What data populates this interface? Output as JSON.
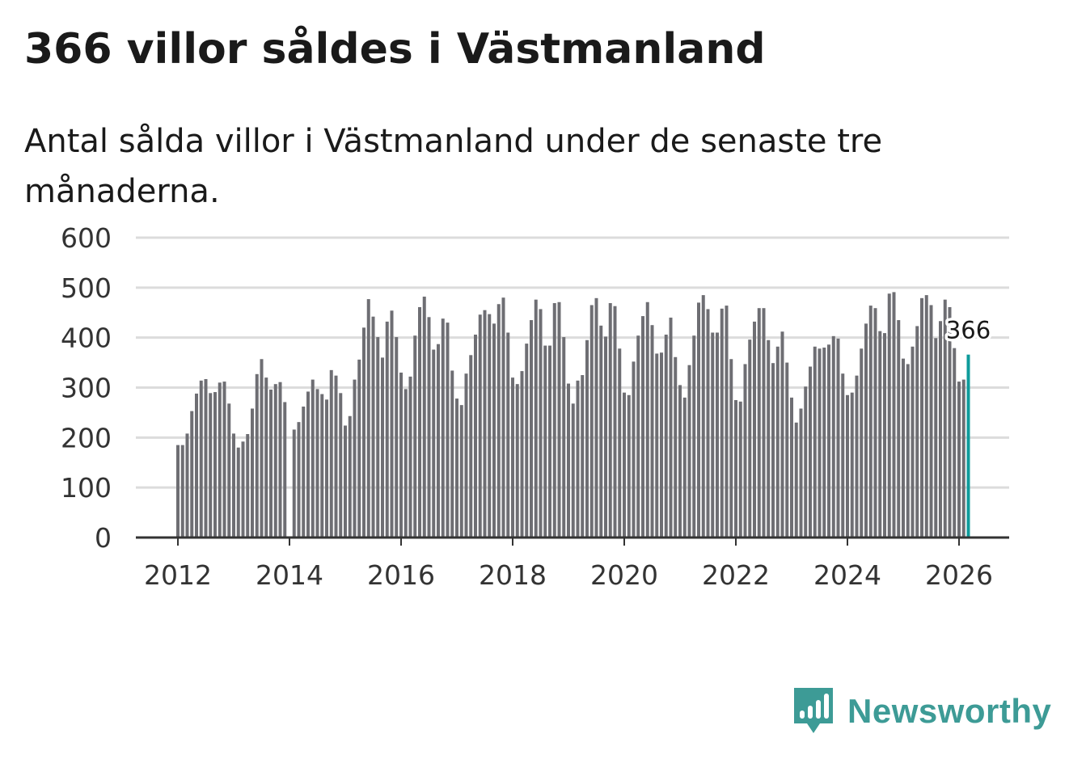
{
  "header": {
    "title": "366 villor såldes i Västmanland",
    "subtitle": "Antal sålda villor i Västmanland under de senaste tre månaderna."
  },
  "brand": {
    "name": "Newsworthy",
    "icon": "bar-chart-speech-bubble-icon",
    "color": "#3d9b96"
  },
  "colors": {
    "bar": "#6e6e73",
    "highlight": "#0e9b9b",
    "grid": "#dcdcdc",
    "axis": "#333333"
  },
  "chart_data": {
    "type": "bar",
    "title": "366 villor såldes i Västmanland",
    "subtitle": "Antal sålda villor i Västmanland under de senaste tre månaderna.",
    "xlabel": "",
    "ylabel": "",
    "ylim": [
      0,
      600
    ],
    "yticks": [
      "0",
      "100",
      "200",
      "300",
      "400",
      "500",
      "600"
    ],
    "xticks": [
      "2012",
      "2014",
      "2016",
      "2018",
      "2020",
      "2022",
      "2024",
      "2026"
    ],
    "grid": true,
    "legend": "none",
    "start": "2012-01",
    "end": "2026-03",
    "highlight_label": "366",
    "values": [
      185,
      185,
      208,
      253,
      288,
      314,
      317,
      289,
      291,
      310,
      312,
      268,
      208,
      180,
      192,
      207,
      258,
      327,
      357,
      320,
      296,
      307,
      311,
      271,
      null,
      216,
      231,
      262,
      292,
      316,
      297,
      287,
      276,
      335,
      324,
      289,
      224,
      243,
      316,
      356,
      420,
      477,
      442,
      401,
      360,
      432,
      454,
      401,
      330,
      297,
      322,
      404,
      461,
      482,
      441,
      376,
      387,
      438,
      430,
      334,
      278,
      265,
      328,
      365,
      406,
      446,
      455,
      447,
      428,
      467,
      480,
      410,
      320,
      307,
      333,
      388,
      435,
      476,
      457,
      384,
      384,
      469,
      471,
      401,
      308,
      268,
      314,
      325,
      395,
      465,
      479,
      424,
      402,
      469,
      463,
      378,
      290,
      285,
      352,
      404,
      443,
      471,
      425,
      368,
      370,
      406,
      440,
      361,
      305,
      280,
      345,
      404,
      470,
      485,
      457,
      410,
      410,
      458,
      464,
      357,
      275,
      272,
      347,
      396,
      432,
      459,
      459,
      395,
      349,
      382,
      412,
      350,
      280,
      230,
      258,
      302,
      342,
      382,
      378,
      380,
      386,
      403,
      398,
      328,
      285,
      290,
      324,
      378,
      428,
      464,
      459,
      413,
      409,
      488,
      491,
      435,
      358,
      347,
      382,
      423,
      479,
      485,
      465,
      399,
      433,
      476,
      461,
      379,
      312,
      316,
      366
    ]
  }
}
